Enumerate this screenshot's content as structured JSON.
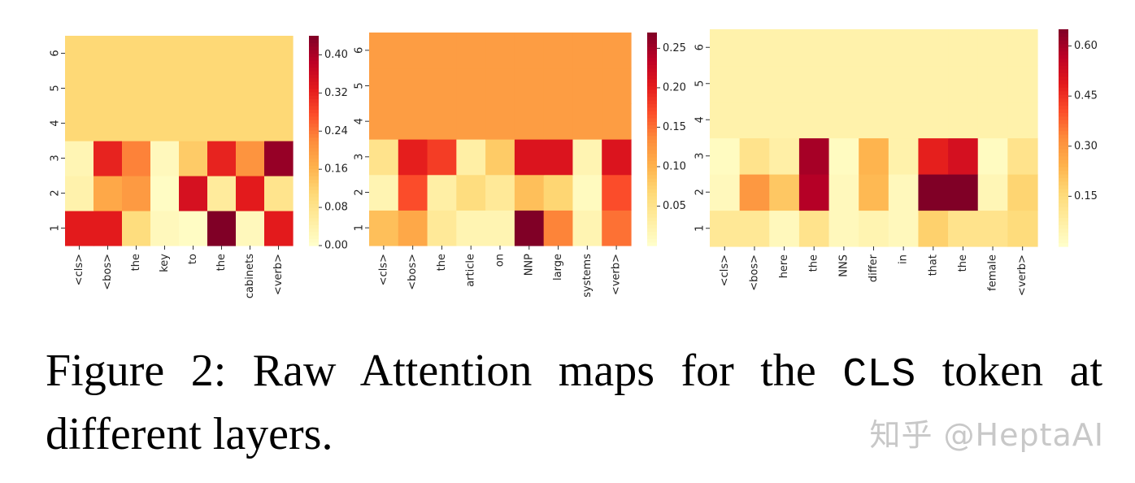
{
  "caption": {
    "prefix": "Figure 2:  Raw Attention maps for the ",
    "mono": "CLS",
    "suffix": " token at different layers."
  },
  "watermark": "知乎 @HeptaAI",
  "chart_data": [
    {
      "type": "heatmap",
      "x_labels": [
        "<cls>",
        "<bos>",
        "the",
        "key",
        "to",
        "the",
        "cabinets",
        "<verb>"
      ],
      "y_labels": [
        "1",
        "2",
        "3",
        "4",
        "5",
        "6"
      ],
      "colormap": "YlOrRd",
      "vmin": 0.0,
      "vmax": 0.44,
      "colorbar_ticks": [
        0.0,
        0.08,
        0.16,
        0.24,
        0.32,
        0.4
      ],
      "colorbar_tick_labels": [
        "0.00",
        "0.08",
        "0.16",
        "0.24",
        "0.32",
        "0.40"
      ],
      "values": [
        [
          0.33,
          0.33,
          0.1,
          0.02,
          0.01,
          0.44,
          0.02,
          0.33
        ],
        [
          0.04,
          0.18,
          0.2,
          0.01,
          0.35,
          0.06,
          0.33,
          0.08
        ],
        [
          0.03,
          0.32,
          0.23,
          0.02,
          0.13,
          0.32,
          0.21,
          0.42
        ],
        [
          0.11,
          0.11,
          0.11,
          0.11,
          0.11,
          0.11,
          0.11,
          0.11
        ],
        [
          0.11,
          0.11,
          0.11,
          0.11,
          0.11,
          0.11,
          0.11,
          0.11
        ],
        [
          0.11,
          0.11,
          0.11,
          0.11,
          0.11,
          0.11,
          0.11,
          0.11
        ]
      ]
    },
    {
      "type": "heatmap",
      "x_labels": [
        "<cls>",
        "<bos>",
        "the",
        "article",
        "on",
        "NNP",
        "large",
        "systems",
        "<verb>"
      ],
      "y_labels": [
        "1",
        "2",
        "3",
        "4",
        "5",
        "6"
      ],
      "colormap": "YlOrRd",
      "vmin": 0.0,
      "vmax": 0.27,
      "colorbar_ticks": [
        0.05,
        0.1,
        0.15,
        0.2,
        0.25
      ],
      "colorbar_tick_labels": [
        "0.05",
        "0.10",
        "0.15",
        "0.20",
        "0.25"
      ],
      "values": [
        [
          0.09,
          0.11,
          0.04,
          0.02,
          0.02,
          0.27,
          0.14,
          0.02,
          0.15
        ],
        [
          0.02,
          0.17,
          0.03,
          0.06,
          0.04,
          0.09,
          0.07,
          0.01,
          0.17
        ],
        [
          0.05,
          0.2,
          0.18,
          0.03,
          0.08,
          0.21,
          0.21,
          0.02,
          0.21
        ],
        [
          0.12,
          0.12,
          0.12,
          0.12,
          0.12,
          0.12,
          0.12,
          0.12,
          0.12
        ],
        [
          0.12,
          0.12,
          0.12,
          0.12,
          0.12,
          0.12,
          0.12,
          0.12,
          0.12
        ],
        [
          0.12,
          0.12,
          0.12,
          0.12,
          0.12,
          0.12,
          0.12,
          0.12,
          0.12
        ]
      ]
    },
    {
      "type": "heatmap",
      "x_labels": [
        "<cls>",
        "<bos>",
        "here",
        "the",
        "NNS",
        "differ",
        "in",
        "that",
        "the",
        "female",
        "<verb>"
      ],
      "y_labels": [
        "1",
        "2",
        "3",
        "4",
        "5",
        "6"
      ],
      "colormap": "YlOrRd",
      "vmin": 0.0,
      "vmax": 0.65,
      "colorbar_ticks": [
        0.15,
        0.3,
        0.45,
        0.6
      ],
      "colorbar_tick_labels": [
        "0.15",
        "0.30",
        "0.45",
        "0.60"
      ],
      "values": [
        [
          0.1,
          0.1,
          0.03,
          0.12,
          0.03,
          0.05,
          0.03,
          0.18,
          0.12,
          0.12,
          0.15
        ],
        [
          0.03,
          0.3,
          0.2,
          0.58,
          0.03,
          0.23,
          0.03,
          0.65,
          0.65,
          0.04,
          0.17
        ],
        [
          0.02,
          0.12,
          0.07,
          0.6,
          0.02,
          0.24,
          0.06,
          0.48,
          0.52,
          0.02,
          0.12
        ],
        [
          0.06,
          0.06,
          0.06,
          0.06,
          0.06,
          0.06,
          0.06,
          0.06,
          0.06,
          0.06,
          0.06
        ],
        [
          0.06,
          0.06,
          0.06,
          0.06,
          0.06,
          0.06,
          0.06,
          0.06,
          0.06,
          0.06,
          0.06
        ],
        [
          0.06,
          0.06,
          0.06,
          0.06,
          0.06,
          0.06,
          0.06,
          0.06,
          0.06,
          0.06,
          0.06
        ]
      ]
    }
  ]
}
